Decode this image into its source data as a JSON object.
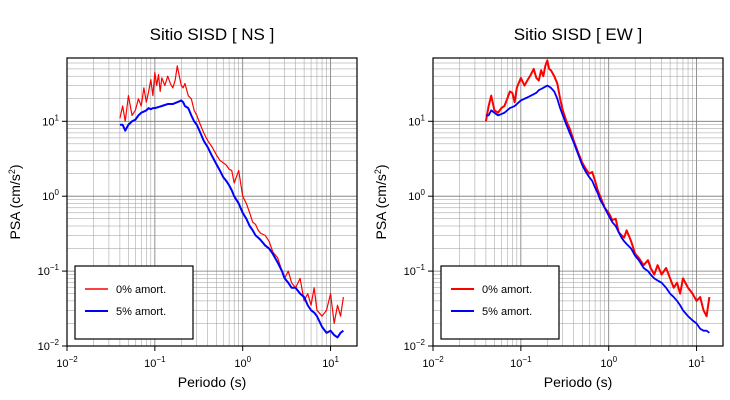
{
  "chart_data": [
    {
      "type": "line",
      "title": "Sitio SISD [ NS ]",
      "xlabel": "Periodo (s)",
      "ylabel_main": "PSA (cm/s",
      "ylabel_sup": "2",
      "ylabel_end": ")",
      "x_scale": "log",
      "y_scale": "log",
      "xlim": [
        0.01,
        20
      ],
      "ylim": [
        0.01,
        70
      ],
      "grid": true,
      "legend_position": "bottom-left",
      "x_ticks": [
        {
          "value": 0.01,
          "base": "10",
          "exp": "−2"
        },
        {
          "value": 0.1,
          "base": "10",
          "exp": "−1"
        },
        {
          "value": 1,
          "base": "10",
          "exp": "0"
        },
        {
          "value": 10,
          "base": "10",
          "exp": "1"
        }
      ],
      "y_ticks": [
        {
          "value": 0.01,
          "base": "10",
          "exp": "−2"
        },
        {
          "value": 0.1,
          "base": "10",
          "exp": "−1"
        },
        {
          "value": 1,
          "base": "10",
          "exp": "0"
        },
        {
          "value": 10,
          "base": "10",
          "exp": "1"
        }
      ],
      "series": [
        {
          "name": "0% amort.",
          "color": "#ff0000",
          "x": [
            0.04,
            0.043,
            0.046,
            0.05,
            0.055,
            0.06,
            0.065,
            0.07,
            0.075,
            0.08,
            0.085,
            0.09,
            0.095,
            0.1,
            0.105,
            0.11,
            0.115,
            0.12,
            0.13,
            0.14,
            0.15,
            0.16,
            0.17,
            0.18,
            0.19,
            0.2,
            0.21,
            0.22,
            0.24,
            0.26,
            0.28,
            0.3,
            0.33,
            0.36,
            0.4,
            0.45,
            0.5,
            0.55,
            0.6,
            0.65,
            0.7,
            0.75,
            0.8,
            0.9,
            1.0,
            1.1,
            1.2,
            1.3,
            1.4,
            1.5,
            1.6,
            1.8,
            2.0,
            2.2,
            2.5,
            2.8,
            3.0,
            3.3,
            3.6,
            4.0,
            4.5,
            5.0,
            5.5,
            6.0,
            6.5,
            7.0,
            8.0,
            9.0,
            10.0,
            11.0,
            12.0,
            13.0,
            14.0
          ],
          "y": [
            11,
            16,
            10,
            22,
            12,
            14,
            20,
            16,
            28,
            18,
            25,
            36,
            22,
            45,
            30,
            42,
            25,
            38,
            30,
            40,
            32,
            28,
            35,
            55,
            40,
            30,
            28,
            32,
            22,
            20,
            14,
            12,
            9,
            7,
            5.5,
            4.5,
            3.6,
            3.0,
            2.8,
            2.6,
            2.3,
            2.2,
            1.5,
            2.2,
            1.0,
            0.8,
            0.6,
            0.45,
            0.42,
            0.35,
            0.32,
            0.3,
            0.25,
            0.18,
            0.15,
            0.1,
            0.08,
            0.1,
            0.07,
            0.06,
            0.08,
            0.04,
            0.05,
            0.035,
            0.06,
            0.03,
            0.025,
            0.03,
            0.05,
            0.02,
            0.035,
            0.025,
            0.045
          ]
        },
        {
          "name": "5% amort.",
          "color": "#0000ff",
          "x": [
            0.04,
            0.043,
            0.046,
            0.05,
            0.055,
            0.06,
            0.065,
            0.07,
            0.075,
            0.08,
            0.085,
            0.09,
            0.095,
            0.1,
            0.11,
            0.12,
            0.13,
            0.14,
            0.15,
            0.16,
            0.17,
            0.18,
            0.19,
            0.2,
            0.21,
            0.22,
            0.24,
            0.26,
            0.28,
            0.3,
            0.33,
            0.36,
            0.4,
            0.45,
            0.5,
            0.55,
            0.6,
            0.65,
            0.7,
            0.75,
            0.8,
            0.9,
            1.0,
            1.1,
            1.2,
            1.3,
            1.4,
            1.5,
            1.6,
            1.8,
            2.0,
            2.2,
            2.5,
            2.8,
            3.0,
            3.3,
            3.6,
            4.0,
            4.5,
            5.0,
            5.5,
            6.0,
            6.5,
            7.0,
            8.0,
            9.0,
            10.0,
            11.0,
            12.0,
            13.0,
            14.0
          ],
          "y": [
            9,
            9,
            7.5,
            9,
            10,
            10.5,
            12,
            13,
            13.5,
            14,
            15,
            14.5,
            15,
            15,
            15.5,
            16,
            16.5,
            17,
            17,
            17,
            17.5,
            18,
            18.5,
            19,
            18,
            16,
            15,
            12,
            10,
            9,
            7,
            5.5,
            4.5,
            3.4,
            2.7,
            2.2,
            1.8,
            1.6,
            1.4,
            1.2,
            1.0,
            0.8,
            0.6,
            0.5,
            0.4,
            0.35,
            0.3,
            0.28,
            0.26,
            0.22,
            0.2,
            0.17,
            0.13,
            0.1,
            0.08,
            0.07,
            0.06,
            0.06,
            0.05,
            0.045,
            0.035,
            0.03,
            0.028,
            0.025,
            0.018,
            0.015,
            0.016,
            0.014,
            0.013,
            0.015,
            0.016
          ]
        }
      ]
    },
    {
      "type": "line",
      "title": "Sitio SISD [ EW ]",
      "xlabel": "Periodo (s)",
      "ylabel_main": "PSA (cm/s",
      "ylabel_sup": "2",
      "ylabel_end": ")",
      "x_scale": "log",
      "y_scale": "log",
      "xlim": [
        0.01,
        20
      ],
      "ylim": [
        0.01,
        70
      ],
      "grid": true,
      "legend_position": "bottom-left",
      "x_ticks": [
        {
          "value": 0.01,
          "base": "10",
          "exp": "−2"
        },
        {
          "value": 0.1,
          "base": "10",
          "exp": "−1"
        },
        {
          "value": 1,
          "base": "10",
          "exp": "0"
        },
        {
          "value": 10,
          "base": "10",
          "exp": "1"
        }
      ],
      "y_ticks": [
        {
          "value": 0.01,
          "base": "10",
          "exp": "−2"
        },
        {
          "value": 0.1,
          "base": "10",
          "exp": "−1"
        },
        {
          "value": 1,
          "base": "10",
          "exp": "0"
        },
        {
          "value": 10,
          "base": "10",
          "exp": "1"
        }
      ],
      "series": [
        {
          "name": "0% amort.",
          "color": "#ff0000",
          "x": [
            0.04,
            0.043,
            0.046,
            0.05,
            0.055,
            0.06,
            0.065,
            0.07,
            0.075,
            0.08,
            0.085,
            0.09,
            0.1,
            0.11,
            0.12,
            0.13,
            0.14,
            0.15,
            0.16,
            0.17,
            0.18,
            0.19,
            0.2,
            0.21,
            0.22,
            0.24,
            0.26,
            0.28,
            0.3,
            0.33,
            0.36,
            0.4,
            0.45,
            0.5,
            0.55,
            0.6,
            0.65,
            0.7,
            0.75,
            0.8,
            0.9,
            1.0,
            1.1,
            1.2,
            1.3,
            1.4,
            1.5,
            1.6,
            1.8,
            2.0,
            2.2,
            2.5,
            2.8,
            3.0,
            3.3,
            3.6,
            4.0,
            4.5,
            5.0,
            5.5,
            6.0,
            6.5,
            7.0,
            8.0,
            9.0,
            10.0,
            11.0,
            12.0,
            13.0,
            14.0
          ],
          "y": [
            10,
            16,
            22,
            14,
            13,
            15,
            16,
            20,
            25,
            24,
            18,
            28,
            38,
            30,
            36,
            42,
            50,
            38,
            35,
            48,
            40,
            55,
            65,
            50,
            48,
            40,
            32,
            20,
            14,
            10,
            8,
            5.5,
            3.8,
            2.8,
            2.3,
            2.0,
            2.1,
            1.6,
            1.2,
            1.0,
            0.7,
            0.6,
            0.48,
            0.5,
            0.33,
            0.3,
            0.28,
            0.35,
            0.25,
            0.17,
            0.15,
            0.12,
            0.14,
            0.11,
            0.09,
            0.12,
            0.09,
            0.11,
            0.08,
            0.06,
            0.07,
            0.05,
            0.08,
            0.06,
            0.05,
            0.04,
            0.045,
            0.03,
            0.025,
            0.045
          ]
        },
        {
          "name": "5% amort.",
          "color": "#0000ff",
          "x": [
            0.04,
            0.043,
            0.046,
            0.05,
            0.055,
            0.06,
            0.065,
            0.07,
            0.075,
            0.08,
            0.085,
            0.09,
            0.1,
            0.11,
            0.12,
            0.13,
            0.14,
            0.15,
            0.16,
            0.17,
            0.18,
            0.19,
            0.2,
            0.21,
            0.22,
            0.24,
            0.26,
            0.28,
            0.3,
            0.33,
            0.36,
            0.4,
            0.45,
            0.5,
            0.55,
            0.6,
            0.65,
            0.7,
            0.75,
            0.8,
            0.9,
            1.0,
            1.1,
            1.2,
            1.3,
            1.4,
            1.5,
            1.6,
            1.8,
            2.0,
            2.2,
            2.5,
            2.8,
            3.0,
            3.3,
            3.6,
            4.0,
            4.5,
            5.0,
            5.5,
            6.0,
            6.5,
            7.0,
            8.0,
            9.0,
            10.0,
            11.0,
            12.0,
            13.0,
            14.0
          ],
          "y": [
            12,
            12,
            14,
            13,
            12,
            12.5,
            13,
            14,
            15,
            15.5,
            16,
            17,
            19,
            20,
            21,
            22,
            23,
            24,
            26,
            27,
            28,
            29,
            30,
            29,
            28,
            25,
            20,
            15,
            12,
            9,
            7,
            5.2,
            3.6,
            2.6,
            2.1,
            1.8,
            1.6,
            1.3,
            1.1,
            0.9,
            0.7,
            0.55,
            0.45,
            0.4,
            0.33,
            0.28,
            0.25,
            0.23,
            0.2,
            0.16,
            0.14,
            0.11,
            0.1,
            0.09,
            0.08,
            0.075,
            0.07,
            0.06,
            0.05,
            0.045,
            0.04,
            0.035,
            0.03,
            0.025,
            0.022,
            0.02,
            0.017,
            0.016,
            0.016,
            0.015
          ]
        }
      ]
    }
  ]
}
